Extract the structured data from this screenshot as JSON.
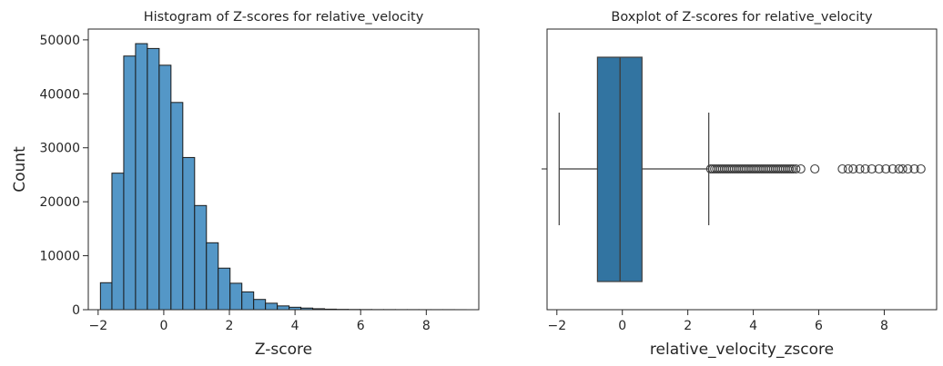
{
  "chart_data": [
    {
      "type": "bar",
      "subtype": "histogram",
      "title": "Histogram of Z-scores for relative_velocity",
      "xlabel": "Z-score",
      "ylabel": "Count",
      "xlim": [
        -2.3,
        9.6
      ],
      "ylim": [
        0,
        52000
      ],
      "xticks": [
        -2,
        0,
        2,
        4,
        6,
        8
      ],
      "yticks": [
        0,
        10000,
        20000,
        30000,
        40000,
        50000
      ],
      "grid": false,
      "bar_color": "#5497c7",
      "bin_edges": [
        -1.93,
        -1.58,
        -1.22,
        -0.86,
        -0.5,
        -0.14,
        0.22,
        0.58,
        0.94,
        1.3,
        1.66,
        2.02,
        2.38,
        2.74,
        3.1,
        3.46,
        3.82,
        4.18,
        4.54,
        4.9,
        5.26,
        5.62,
        5.98,
        6.34,
        6.7,
        7.06,
        7.42,
        7.78,
        8.14,
        8.5,
        8.86,
        9.22
      ],
      "values": [
        5000,
        25300,
        47000,
        49300,
        48400,
        45300,
        38400,
        28200,
        19300,
        12400,
        7700,
        4900,
        3300,
        1900,
        1200,
        700,
        450,
        300,
        180,
        100,
        60,
        40,
        30,
        20,
        20,
        15,
        15,
        10,
        10,
        10,
        5
      ]
    },
    {
      "type": "box",
      "title": "Boxplot of Z-scores for relative_velocity",
      "xlabel": "relative_velocity_zscore",
      "xlim": [
        -2.3,
        9.6
      ],
      "xticks": [
        -2,
        0,
        2,
        4,
        6,
        8
      ],
      "box_color": "#3274a1",
      "whisker_low": -1.93,
      "q1": -0.76,
      "median": -0.07,
      "q3": 0.6,
      "whisker_high": 2.64,
      "outliers": [
        2.7,
        2.76,
        2.82,
        2.88,
        2.94,
        3.0,
        3.06,
        3.12,
        3.18,
        3.24,
        3.3,
        3.36,
        3.42,
        3.48,
        3.54,
        3.6,
        3.66,
        3.72,
        3.78,
        3.84,
        3.9,
        3.96,
        4.02,
        4.08,
        4.14,
        4.2,
        4.26,
        4.32,
        4.38,
        4.44,
        4.5,
        4.56,
        4.62,
        4.68,
        4.74,
        4.8,
        4.86,
        4.92,
        4.98,
        5.04,
        5.1,
        5.16,
        5.22,
        5.3,
        5.45,
        5.88,
        6.72,
        6.9,
        7.05,
        7.25,
        7.42,
        7.62,
        7.84,
        8.05,
        8.26,
        8.45,
        8.56,
        8.72,
        8.92,
        9.12
      ]
    }
  ]
}
